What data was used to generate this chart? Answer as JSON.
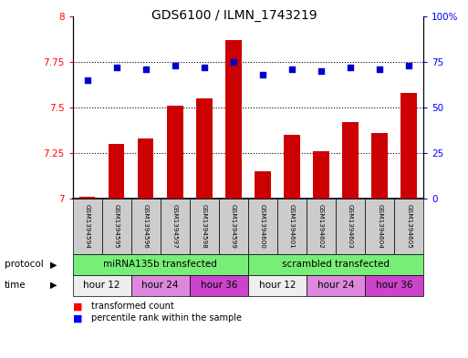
{
  "title": "GDS6100 / ILMN_1743219",
  "samples": [
    "GSM1394594",
    "GSM1394595",
    "GSM1394596",
    "GSM1394597",
    "GSM1394598",
    "GSM1394599",
    "GSM1394600",
    "GSM1394601",
    "GSM1394602",
    "GSM1394603",
    "GSM1394604",
    "GSM1394605"
  ],
  "bar_values": [
    7.01,
    7.3,
    7.33,
    7.51,
    7.55,
    7.87,
    7.15,
    7.35,
    7.26,
    7.42,
    7.36,
    7.58
  ],
  "dot_values": [
    65,
    72,
    71,
    73,
    72,
    75,
    68,
    71,
    70,
    72,
    71,
    73
  ],
  "bar_color": "#cc0000",
  "dot_color": "#0000cc",
  "ylim_left": [
    7.0,
    8.0
  ],
  "ylim_right": [
    0,
    100
  ],
  "yticks_left": [
    7.0,
    7.25,
    7.5,
    7.75,
    8.0
  ],
  "yticks_right": [
    0,
    25,
    50,
    75,
    100
  ],
  "ytick_labels_left": [
    "7",
    "7.25",
    "7.5",
    "7.75",
    "8"
  ],
  "ytick_labels_right": [
    "0",
    "25",
    "50",
    "75",
    "100%"
  ],
  "protocol_labels": [
    "miRNA135b transfected",
    "scrambled transfected"
  ],
  "protocol_color": "#77ee77",
  "time_colors": {
    "hour 12": "#eeeeee",
    "hour 24": "#dd88dd",
    "hour 36": "#cc44cc"
  },
  "sample_bg_color": "#cccccc",
  "legend_items": [
    {
      "label": "transformed count",
      "color": "#cc0000"
    },
    {
      "label": "percentile rank within the sample",
      "color": "#0000cc"
    }
  ]
}
